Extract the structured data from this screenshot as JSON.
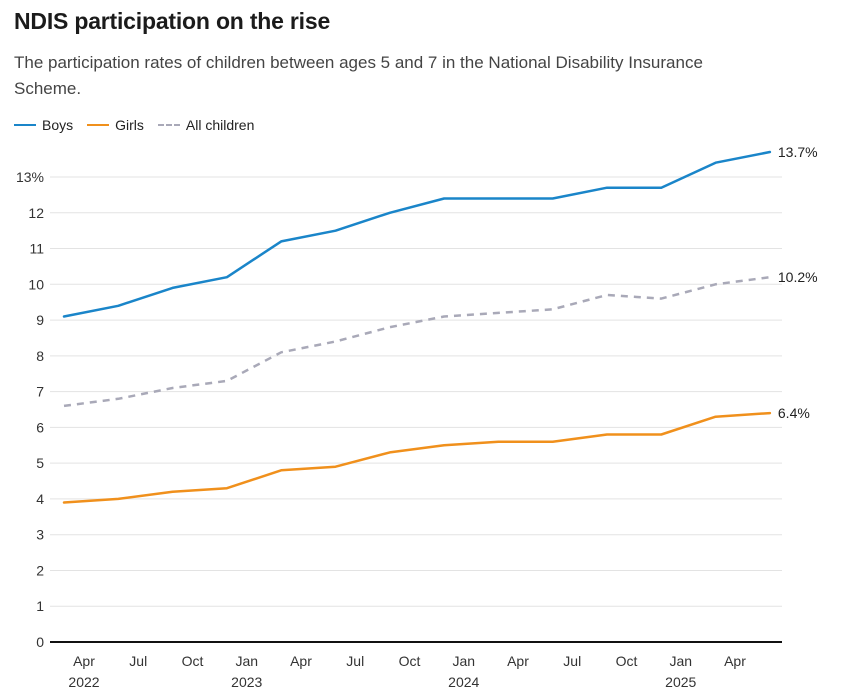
{
  "header": {
    "title": "NDIS participation on the rise",
    "subtitle": "The participation rates of children between ages 5 and 7 in the National Disability Insurance Scheme."
  },
  "legend": [
    {
      "label": "Boys",
      "color": "#1a85c9",
      "style": "solid"
    },
    {
      "label": "Girls",
      "color": "#f0901c",
      "style": "solid"
    },
    {
      "label": "All children",
      "color": "#a9a9b8",
      "style": "dashed"
    }
  ],
  "chart_data": {
    "type": "line",
    "title": "NDIS participation on the rise",
    "xlabel": "",
    "ylabel": "",
    "ylim": [
      0,
      13.7
    ],
    "grid": true,
    "legend_position": "top-left",
    "y_ticks": [
      {
        "value": 0,
        "label": "0"
      },
      {
        "value": 1,
        "label": "1"
      },
      {
        "value": 2,
        "label": "2"
      },
      {
        "value": 3,
        "label": "3"
      },
      {
        "value": 4,
        "label": "4"
      },
      {
        "value": 5,
        "label": "5"
      },
      {
        "value": 6,
        "label": "6"
      },
      {
        "value": 7,
        "label": "7"
      },
      {
        "value": 8,
        "label": "8"
      },
      {
        "value": 9,
        "label": "9"
      },
      {
        "value": 10,
        "label": "10"
      },
      {
        "value": 11,
        "label": "11"
      },
      {
        "value": 12,
        "label": "12"
      },
      {
        "value": 13,
        "label": "13%"
      }
    ],
    "x_ticks": [
      {
        "month": "Apr",
        "year": "2022"
      },
      {
        "month": "Jul",
        "year": ""
      },
      {
        "month": "Oct",
        "year": ""
      },
      {
        "month": "Jan",
        "year": "2023"
      },
      {
        "month": "Apr",
        "year": ""
      },
      {
        "month": "Jul",
        "year": ""
      },
      {
        "month": "Oct",
        "year": ""
      },
      {
        "month": "Jan",
        "year": "2024"
      },
      {
        "month": "Apr",
        "year": ""
      },
      {
        "month": "Jul",
        "year": ""
      },
      {
        "month": "Oct",
        "year": ""
      },
      {
        "month": "Jan",
        "year": "2025"
      },
      {
        "month": "Apr",
        "year": ""
      }
    ],
    "series": [
      {
        "name": "Boys",
        "color": "#1a85c9",
        "dashed": false,
        "end_label": "13.7%",
        "values": [
          9.1,
          9.4,
          9.9,
          10.2,
          11.2,
          11.5,
          12.0,
          12.4,
          12.4,
          12.4,
          12.7,
          12.7,
          13.4,
          13.7
        ]
      },
      {
        "name": "Girls",
        "color": "#f0901c",
        "dashed": false,
        "end_label": "6.4%",
        "values": [
          3.9,
          4.0,
          4.2,
          4.3,
          4.8,
          4.9,
          5.3,
          5.5,
          5.6,
          5.6,
          5.8,
          5.8,
          6.3,
          6.4
        ]
      },
      {
        "name": "All children",
        "color": "#a9a9b8",
        "dashed": true,
        "end_label": "10.2%",
        "values": [
          6.6,
          6.8,
          7.1,
          7.3,
          8.1,
          8.4,
          8.8,
          9.1,
          9.2,
          9.3,
          9.7,
          9.6,
          10.0,
          10.2
        ]
      }
    ]
  }
}
